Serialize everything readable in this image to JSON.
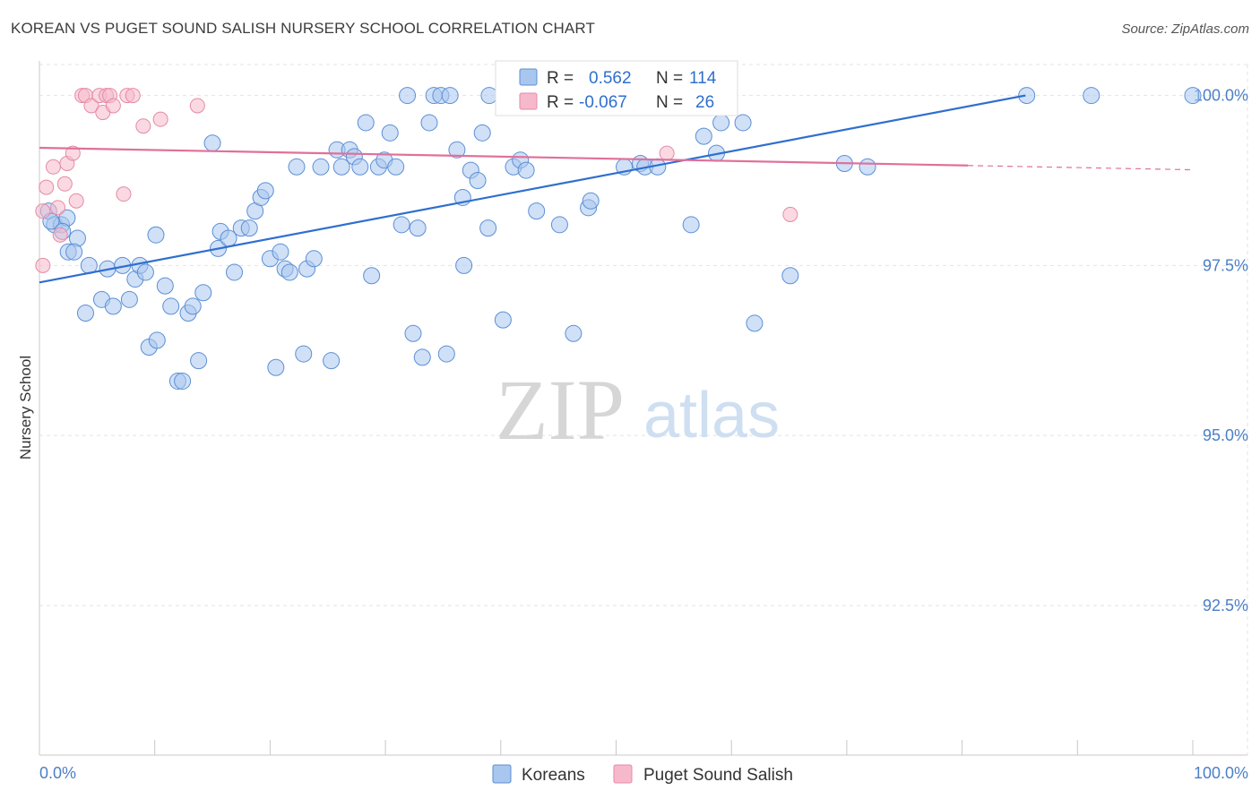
{
  "header": {
    "title": "KOREAN VS PUGET SOUND SALISH NURSERY SCHOOL CORRELATION CHART",
    "source": "Source: ZipAtlas.com"
  },
  "watermark": {
    "zip": "ZIP",
    "atlas": "atlas"
  },
  "colors": {
    "blue_fill": "#a9c6ee",
    "blue_stroke": "#5b8fd6",
    "blue_line": "#2f6fcf",
    "pink_fill": "#f6b9cb",
    "pink_stroke": "#e58aa7",
    "pink_line": "#e0709a",
    "label": "#4a7fc8",
    "grid": "#e3e3e3"
  },
  "stats": [
    {
      "r_label": "R =",
      "r_value": "0.562",
      "n_label": "N =",
      "n_value": "114"
    },
    {
      "r_label": "R =",
      "r_value": "-0.067",
      "n_label": "N =",
      "n_value": "26"
    }
  ],
  "legend": {
    "korean": "Koreans",
    "salish": "Puget Sound Salish"
  },
  "chart_data": {
    "type": "scatter",
    "title": "KOREAN VS PUGET SOUND SALISH NURSERY SCHOOL CORRELATION CHART",
    "xlabel": "",
    "ylabel": "Nursery School",
    "xlim": [
      0,
      100
    ],
    "ylim": [
      90.3,
      100.35
    ],
    "x_tick_labels": [
      "0.0%",
      "100.0%"
    ],
    "y_ticks": [
      92.5,
      95.0,
      97.5,
      100.0
    ],
    "y_tick_labels": [
      "92.5%",
      "95.0%",
      "97.5%",
      "100.0%"
    ],
    "grid": true,
    "legend_position": "bottom-center",
    "series": [
      {
        "name": "Koreans",
        "color": "#a9c6ee",
        "r": 0.562,
        "n": 114,
        "trend": {
          "x": [
            0,
            85.5
          ],
          "y": [
            97.25,
            100.0
          ]
        },
        "points": [
          [
            0.8,
            98.3
          ],
          [
            1.3,
            98.1
          ],
          [
            1.9,
            98.1
          ],
          [
            2.4,
            98.2
          ],
          [
            3.3,
            97.9
          ],
          [
            2.5,
            97.7
          ],
          [
            3.0,
            97.7
          ],
          [
            4.3,
            97.5
          ],
          [
            5.4,
            97.0
          ],
          [
            4.0,
            96.8
          ],
          [
            5.9,
            97.45
          ],
          [
            6.4,
            96.9
          ],
          [
            7.2,
            97.5
          ],
          [
            7.8,
            97.0
          ],
          [
            8.3,
            97.3
          ],
          [
            8.7,
            97.5
          ],
          [
            9.2,
            97.4
          ],
          [
            9.5,
            96.3
          ],
          [
            10.2,
            96.4
          ],
          [
            10.1,
            97.95
          ],
          [
            10.9,
            97.2
          ],
          [
            11.4,
            96.9
          ],
          [
            12.0,
            95.8
          ],
          [
            12.4,
            95.8
          ],
          [
            12.9,
            96.8
          ],
          [
            13.3,
            96.9
          ],
          [
            13.8,
            96.1
          ],
          [
            14.2,
            97.1
          ],
          [
            15.0,
            99.3
          ],
          [
            15.5,
            97.75
          ],
          [
            15.7,
            98.0
          ],
          [
            16.4,
            97.9
          ],
          [
            16.9,
            97.4
          ],
          [
            17.5,
            98.05
          ],
          [
            18.2,
            98.05
          ],
          [
            18.7,
            98.3
          ],
          [
            19.2,
            98.5
          ],
          [
            19.6,
            98.6
          ],
          [
            20.0,
            97.6
          ],
          [
            20.5,
            96.0
          ],
          [
            20.9,
            97.7
          ],
          [
            21.3,
            97.45
          ],
          [
            21.7,
            97.4
          ],
          [
            22.3,
            98.95
          ],
          [
            22.9,
            96.2
          ],
          [
            23.2,
            97.45
          ],
          [
            23.8,
            97.6
          ],
          [
            24.4,
            98.95
          ],
          [
            25.3,
            96.1
          ],
          [
            25.8,
            99.2
          ],
          [
            26.2,
            98.95
          ],
          [
            26.9,
            99.2
          ],
          [
            27.3,
            99.1
          ],
          [
            27.8,
            98.95
          ],
          [
            28.3,
            99.6
          ],
          [
            28.8,
            97.35
          ],
          [
            29.4,
            98.95
          ],
          [
            29.9,
            99.05
          ],
          [
            30.4,
            99.45
          ],
          [
            30.9,
            98.95
          ],
          [
            31.4,
            98.1
          ],
          [
            31.9,
            100.0
          ],
          [
            32.4,
            96.5
          ],
          [
            32.8,
            98.05
          ],
          [
            33.2,
            96.15
          ],
          [
            33.8,
            99.6
          ],
          [
            34.2,
            100.0
          ],
          [
            34.8,
            100.0
          ],
          [
            35.3,
            96.2
          ],
          [
            35.6,
            100.0
          ],
          [
            36.2,
            99.2
          ],
          [
            36.7,
            98.5
          ],
          [
            36.8,
            97.5
          ],
          [
            37.4,
            98.9
          ],
          [
            38.0,
            98.75
          ],
          [
            38.4,
            99.45
          ],
          [
            38.9,
            98.05
          ],
          [
            40.2,
            96.7
          ],
          [
            41.1,
            98.95
          ],
          [
            41.7,
            99.05
          ],
          [
            42.2,
            98.9
          ],
          [
            43.1,
            98.3
          ],
          [
            43.3,
            99.9
          ],
          [
            45.1,
            98.1
          ],
          [
            46.3,
            96.5
          ],
          [
            47.6,
            98.35
          ],
          [
            47.8,
            98.45
          ],
          [
            50.0,
            100.0
          ],
          [
            51.2,
            100.0
          ],
          [
            50.7,
            98.95
          ],
          [
            52.1,
            99.0
          ],
          [
            52.5,
            98.95
          ],
          [
            53.6,
            98.95
          ],
          [
            56.5,
            98.1
          ],
          [
            57.6,
            99.4
          ],
          [
            58.7,
            99.15
          ],
          [
            59.1,
            99.6
          ],
          [
            59.5,
            100.0
          ],
          [
            61.0,
            99.6
          ],
          [
            62.0,
            96.65
          ],
          [
            65.1,
            97.35
          ],
          [
            69.8,
            99.0
          ],
          [
            71.8,
            98.95
          ],
          [
            85.6,
            100.0
          ],
          [
            91.2,
            100.0
          ],
          [
            100.0,
            100.0
          ],
          [
            55.3,
            100.0
          ],
          [
            46.8,
            100.0
          ],
          [
            39.0,
            100.0
          ],
          [
            44.5,
            100.0
          ],
          [
            56.0,
            99.9
          ],
          [
            48.3,
            100.0
          ],
          [
            1.0,
            98.15
          ],
          [
            2.0,
            98.0
          ]
        ]
      },
      {
        "name": "Puget Sound Salish",
        "color": "#f6b9cb",
        "r": -0.067,
        "n": 26,
        "trend": {
          "x": [
            0,
            80.5
          ],
          "y": [
            99.23,
            98.97
          ]
        },
        "points": [
          [
            0.3,
            98.3
          ],
          [
            0.6,
            98.65
          ],
          [
            0.3,
            97.5
          ],
          [
            1.2,
            98.95
          ],
          [
            1.6,
            98.35
          ],
          [
            1.8,
            97.95
          ],
          [
            2.2,
            98.7
          ],
          [
            2.4,
            99.0
          ],
          [
            2.9,
            99.15
          ],
          [
            3.2,
            98.45
          ],
          [
            3.7,
            100.0
          ],
          [
            4.0,
            100.0
          ],
          [
            4.5,
            99.85
          ],
          [
            5.2,
            100.0
          ],
          [
            5.5,
            99.75
          ],
          [
            5.8,
            100.0
          ],
          [
            6.1,
            100.0
          ],
          [
            6.4,
            99.85
          ],
          [
            7.3,
            98.55
          ],
          [
            7.6,
            100.0
          ],
          [
            8.1,
            100.0
          ],
          [
            9.0,
            99.55
          ],
          [
            10.5,
            99.65
          ],
          [
            13.7,
            99.85
          ],
          [
            54.4,
            99.15
          ],
          [
            65.1,
            98.25
          ]
        ]
      }
    ]
  }
}
